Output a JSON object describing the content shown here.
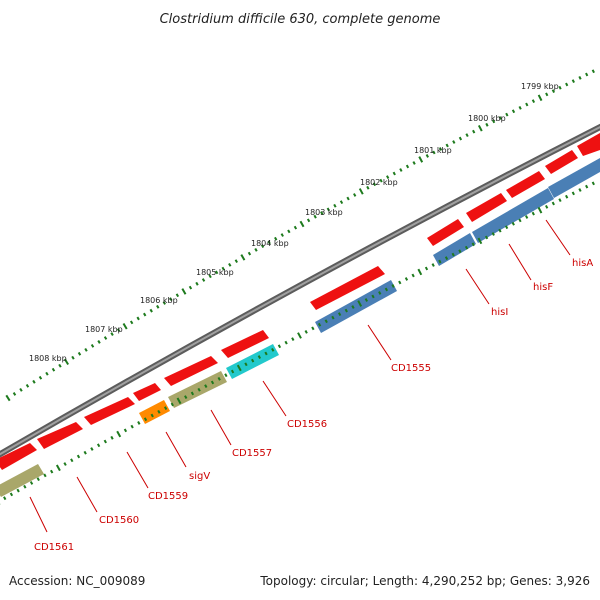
{
  "title": "Clostridium difficile 630, complete genome",
  "footer": {
    "accession": "Accession: NC_009089",
    "summary": "Topology: circular; Length: 4,290,252 bp; Genes: 3,926"
  },
  "colors": {
    "backbone": "#7a7a7a",
    "ticks": "#1d7a1d",
    "forward_gene": "#ee1111",
    "rev_blue": "#4a7fb5",
    "rev_olive": "#a9a76a",
    "rev_cyan": "#22c9cc",
    "rev_orange": "#ff8a00",
    "label_text": "#cc0000"
  },
  "scale": {
    "kbp_labels": [
      "1799 kbp",
      "1800 kbp",
      "1801 kbp",
      "1802 kbp",
      "1803 kbp",
      "1804 kbp",
      "1805 kbp",
      "1806 kbp",
      "1807 kbp",
      "1808 kbp"
    ]
  },
  "genes": {
    "forward": [
      "gene",
      "gene",
      "gene",
      "gene",
      "gene",
      "gene",
      "gene",
      "gene",
      "gene",
      "gene",
      "gene",
      "gene",
      "gene"
    ],
    "reverse": [
      {
        "name": "CD1561",
        "color": "rev_olive"
      },
      {
        "name": "CD1560",
        "color": "rev_olive"
      },
      {
        "name": "CD1559",
        "color": "rev_olive"
      },
      {
        "name": "sigV",
        "color": "rev_orange"
      },
      {
        "name": "CD1557",
        "color": "rev_olive"
      },
      {
        "name": "CD1556",
        "color": "rev_cyan"
      },
      {
        "name": "CD1555",
        "color": "rev_blue"
      },
      {
        "name": "hisI",
        "color": "rev_blue"
      },
      {
        "name": "hisF",
        "color": "rev_blue"
      },
      {
        "name": "hisA",
        "color": "rev_blue"
      }
    ]
  },
  "labels": [
    "CD1561",
    "CD1560",
    "CD1559",
    "sigV",
    "CD1557",
    "CD1556",
    "CD1555",
    "hisI",
    "hisF",
    "hisA"
  ]
}
